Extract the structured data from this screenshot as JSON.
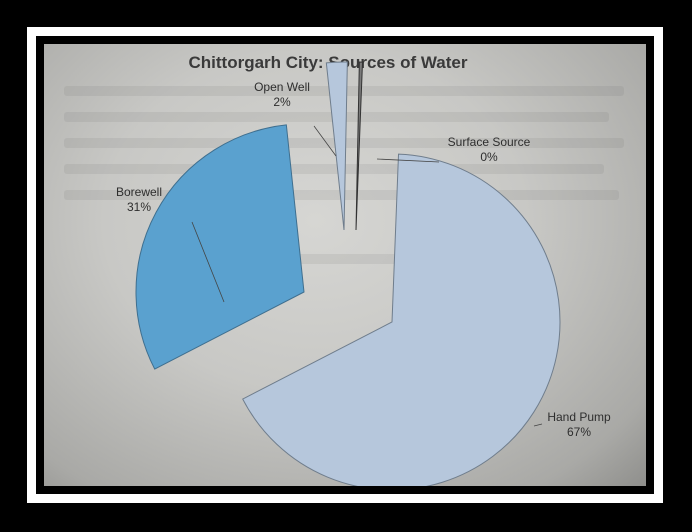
{
  "chart_data": {
    "type": "pie",
    "title": "Chittorgarh City: Sources of Water",
    "slices": [
      {
        "name": "Hand Pump",
        "percent_label": "67%",
        "value": 67,
        "color": "#b6c7dc"
      },
      {
        "name": "Borewell",
        "percent_label": "31%",
        "value": 31,
        "color": "#5aa1cf"
      },
      {
        "name": "Open Well",
        "percent_label": "2%",
        "value": 2,
        "color": "#b6c7dc"
      },
      {
        "name": "Surface Source",
        "percent_label": "0%",
        "value": 0.3,
        "color": "#7a7a7a"
      }
    ],
    "exploded": true,
    "legend": "none"
  }
}
